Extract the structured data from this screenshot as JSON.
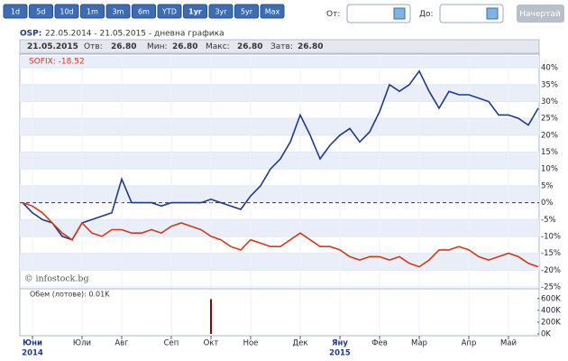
{
  "toolbar": {
    "ranges": [
      "1d",
      "5d",
      "10d",
      "1m",
      "3m",
      "6m",
      "YTD",
      "1yr",
      "3yr",
      "5yr",
      "Max"
    ],
    "selected": "1yr",
    "from_label": "От:",
    "to_label": "До:",
    "button": "Начертай"
  },
  "header": {
    "symbol": "OSP:",
    "subtitle": "22.05.2014 - 21.05.2015 - дневна графика",
    "date": "21.05.2015",
    "open_label": "Отв:",
    "open": "26.80",
    "low_label": "Мин:",
    "low": "26.80",
    "high_label": "Макс:",
    "high": "26.80",
    "close_label": "Затв:",
    "close": "26.80"
  },
  "chart_data": [
    {
      "type": "line",
      "annotation": "© infostock.bg",
      "categories": [
        null,
        "Юни",
        null,
        null,
        null,
        null,
        "Юли",
        null,
        null,
        null,
        "Авг",
        null,
        null,
        null,
        null,
        "Сеп",
        null,
        null,
        null,
        "Окт",
        null,
        null,
        null,
        "Ное",
        null,
        null,
        null,
        null,
        "Дек",
        null,
        null,
        null,
        "Яну",
        null,
        null,
        null,
        "Фев",
        null,
        null,
        null,
        "Мар",
        null,
        null,
        null,
        null,
        "Апр",
        null,
        null,
        null,
        "Май",
        null,
        null,
        null
      ],
      "year_labels": [
        null,
        "2014",
        null,
        null,
        null,
        null,
        null,
        null,
        null,
        null,
        null,
        null,
        null,
        null,
        null,
        null,
        null,
        null,
        null,
        null,
        null,
        null,
        null,
        null,
        null,
        null,
        null,
        null,
        null,
        null,
        null,
        null,
        "2015",
        null,
        null,
        null,
        null,
        null,
        null,
        null,
        null,
        null,
        null,
        null,
        null,
        null,
        null,
        null,
        null,
        null,
        null,
        null,
        null
      ],
      "series": [
        {
          "color": "#1f3a8a",
          "values": [
            0,
            -3,
            -5,
            -6,
            -10,
            -11,
            -6,
            -5,
            -4,
            -3,
            7,
            0,
            0,
            0,
            -1,
            0,
            0,
            0,
            0,
            1,
            0,
            -1,
            -2,
            2,
            5,
            10,
            13,
            18,
            26,
            20,
            13,
            17,
            20,
            22,
            18,
            21,
            27,
            35,
            33,
            35,
            39,
            33,
            28,
            33,
            32,
            32,
            31,
            30,
            26,
            26,
            25,
            23,
            28
          ]
        },
        {
          "name": "SOFIX: -18.52",
          "color": "#d23a1e",
          "values": [
            0,
            -1,
            -3,
            -6,
            -9,
            -11,
            -6,
            -9,
            -10,
            -8,
            -8,
            -9,
            -9,
            -8,
            -9,
            -7,
            -6,
            -7,
            -8,
            -10,
            -11,
            -13,
            -14,
            -11,
            -12,
            -13,
            -13,
            -11,
            -9,
            -11,
            -13,
            -13,
            -14,
            -16,
            -17,
            -16,
            -16,
            -17,
            -16,
            -18,
            -19,
            -17,
            -14,
            -14,
            -13,
            -14,
            -16,
            -17,
            -16,
            -15,
            -16,
            -18,
            -19
          ]
        }
      ],
      "ylim": [
        -25,
        43.5
      ],
      "yticks": [
        {
          "value": -25,
          "label": "-25%"
        },
        {
          "value": -20,
          "label": "-20%"
        },
        {
          "value": -15,
          "label": "-15%"
        },
        {
          "value": -10,
          "label": "-10%"
        },
        {
          "value": -5,
          "label": "-5%"
        },
        {
          "value": 0,
          "label": "0%"
        },
        {
          "value": 5,
          "label": "5%"
        },
        {
          "value": 10,
          "label": "10%"
        },
        {
          "value": 15,
          "label": "15%"
        },
        {
          "value": 20,
          "label": "20%"
        },
        {
          "value": 25,
          "label": "25%"
        },
        {
          "value": 30,
          "label": "30%"
        },
        {
          "value": 35,
          "label": "35%"
        },
        {
          "value": 40,
          "label": "40%"
        }
      ],
      "grid": true
    },
    {
      "type": "bar",
      "title": "Обем (лотове): 0.01K",
      "color": "#8b0000",
      "values": [
        0,
        0,
        0,
        0,
        0,
        0,
        0,
        0,
        0,
        0,
        0,
        0,
        0,
        0,
        0,
        0,
        0,
        0,
        0,
        590000,
        0,
        0,
        0,
        0,
        0,
        0,
        0,
        0,
        0,
        0,
        0,
        0,
        0,
        0,
        0,
        0,
        0,
        0,
        0,
        0,
        0,
        0,
        0,
        0,
        0,
        0,
        0,
        0,
        0,
        0,
        0,
        0,
        0
      ],
      "ylim": [
        0,
        750000
      ],
      "yticks": [
        {
          "value": 0,
          "label": "0K"
        },
        {
          "value": 200000,
          "label": "200K"
        },
        {
          "value": 400000,
          "label": "400K"
        },
        {
          "value": 600000,
          "label": "600K"
        }
      ]
    }
  ]
}
